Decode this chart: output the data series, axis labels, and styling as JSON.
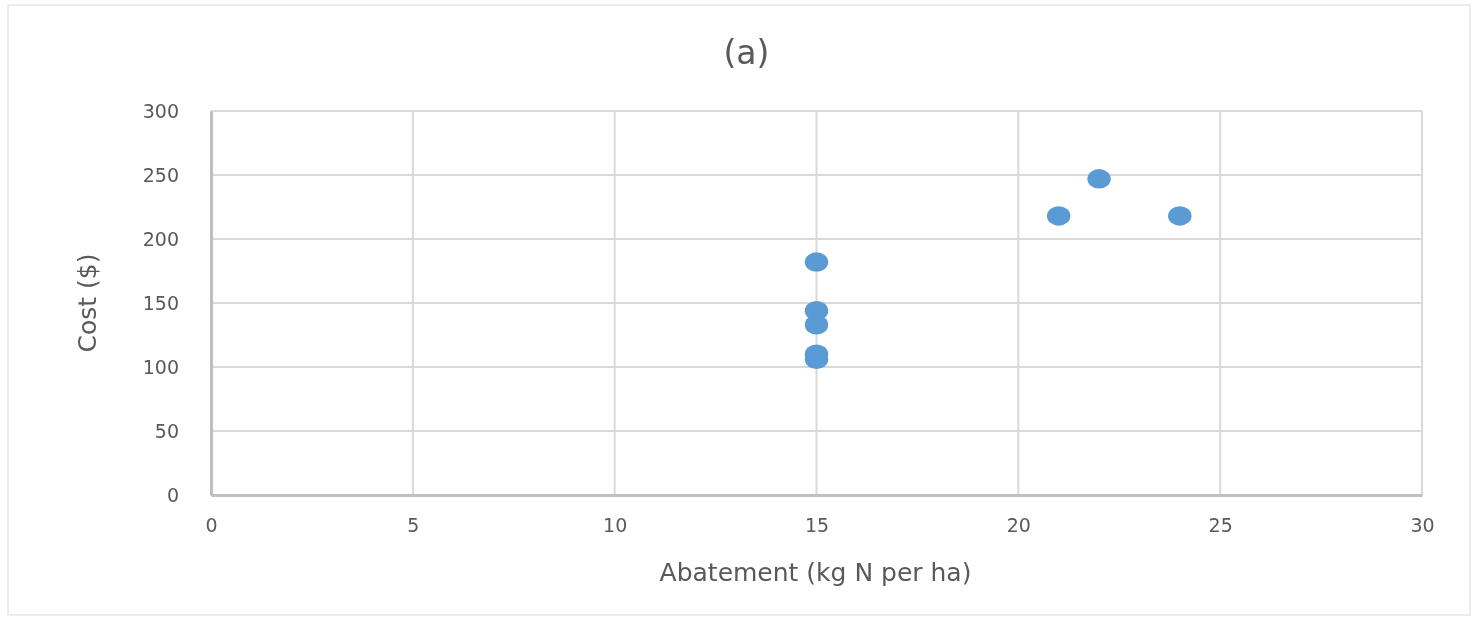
{
  "chart_data": {
    "type": "scatter",
    "title": "(a)",
    "xlabel": "Abatement (kg N per ha)",
    "ylabel": "Cost ($)",
    "x": [
      15,
      15,
      15,
      15,
      15,
      21,
      22,
      24
    ],
    "series": [
      {
        "color": "#5b9bd5",
        "values": [
          182,
          144,
          133,
          110,
          106,
          218,
          247,
          218
        ]
      }
    ],
    "xlim": [
      0,
      30
    ],
    "xticks": [
      0,
      5,
      10,
      15,
      20,
      25,
      30
    ],
    "ylim": [
      0,
      300
    ],
    "yticks": [
      0,
      50,
      100,
      150,
      200,
      250,
      300
    ],
    "grid": true,
    "marker": "circle"
  }
}
